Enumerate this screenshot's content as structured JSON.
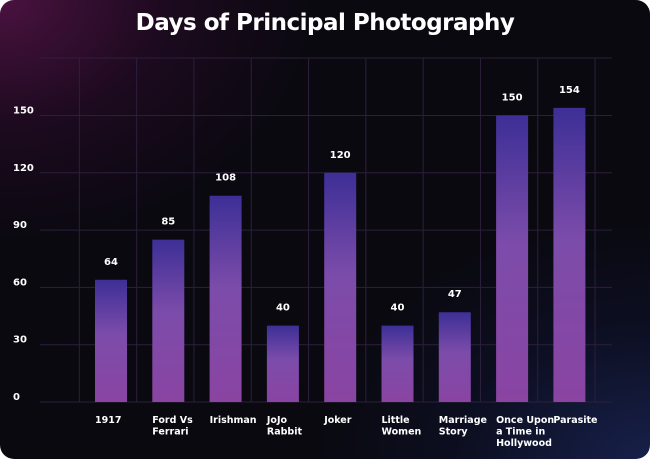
{
  "chart_data": {
    "type": "bar",
    "title": "Days of Principal Photography",
    "categories": [
      "1917",
      "Ford Vs Ferrari",
      "Irishman",
      "JoJo Rabbit",
      "Joker",
      "Little Women",
      "Marriage Story",
      "Once Upon a Time in Hollywood",
      "Parasite"
    ],
    "category_lines": [
      [
        "1917"
      ],
      [
        "Ford Vs",
        "Ferrari"
      ],
      [
        "Irishman"
      ],
      [
        "JoJo",
        "Rabbit"
      ],
      [
        "Joker"
      ],
      [
        "Little",
        "Women"
      ],
      [
        "Marriage",
        "Story"
      ],
      [
        "Once Upon",
        "a Time in",
        "Hollywood"
      ],
      [
        "Parasite"
      ]
    ],
    "values": [
      64,
      85,
      108,
      40,
      120,
      40,
      47,
      150,
      154
    ],
    "value_labels": [
      "64",
      "85",
      "108",
      "40",
      "120",
      "40",
      "47",
      "150",
      "154"
    ],
    "yticks": [
      0,
      30,
      60,
      90,
      120,
      150
    ],
    "ytick_labels": [
      "0",
      "30",
      "60",
      "90",
      "120",
      "150"
    ],
    "ylim": [
      0,
      180
    ],
    "xlabel": "",
    "ylabel": "",
    "grid": true,
    "legend": "none",
    "colors": {
      "bar_top": "#3d2f96",
      "bar_mid": "#7c4caa",
      "bar_bottom": "#8a44a2",
      "grid": "#2a1f3a",
      "text": "#ffffff"
    }
  }
}
